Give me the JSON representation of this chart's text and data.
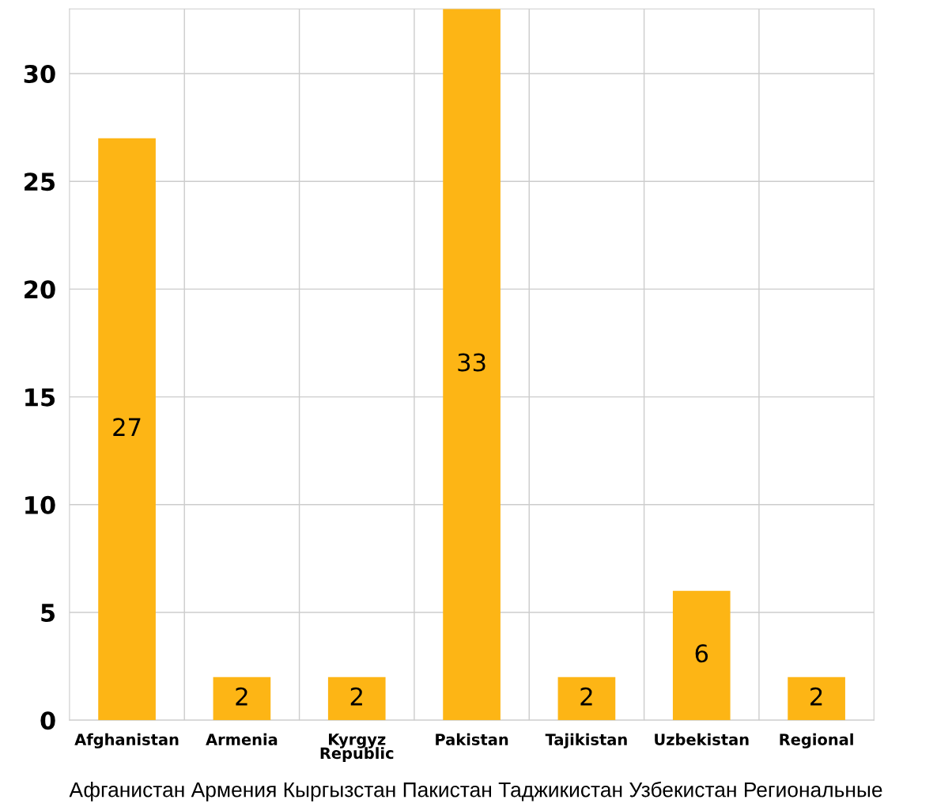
{
  "chart_data": {
    "type": "bar",
    "categories": [
      "Afghanistan",
      "Armenia",
      "Kyrgyz\nRepublic",
      "Pakistan",
      "Tajikistan",
      "Uzbekistan",
      "Regional"
    ],
    "values": [
      27,
      2,
      2,
      33,
      2,
      6,
      2
    ],
    "color": "#fdb515",
    "data_labels": true,
    "ylim": [
      0,
      33
    ],
    "yticks": [
      0,
      5,
      10,
      15,
      20,
      25,
      30
    ],
    "grid": true,
    "annotations": [
      "Афганистан Армения Кыргызстан Пакистан Таджикистан Узбекистан Региональные"
    ]
  }
}
